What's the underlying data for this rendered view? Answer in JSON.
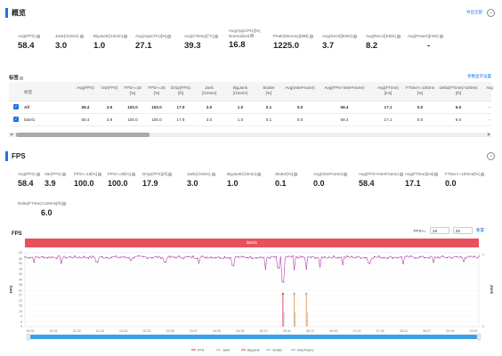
{
  "overview": {
    "title": "概览",
    "export_label": "导出全部",
    "collapse_glyph": "⌄",
    "metrics": [
      {
        "label": "Avg(FPS)",
        "value": "58.4"
      },
      {
        "label": "Jank(/10min)",
        "value": "3.0"
      },
      {
        "label": "BigJank(/10min)",
        "value": "1.0"
      },
      {
        "label": "Avg(AppCPU)[%]",
        "value": "27.1"
      },
      {
        "label": "Avg(CTemp)[°C]",
        "value": "39.3"
      },
      {
        "label": "Avg(AppCPU)[%]",
        "label2": "Normalized",
        "value": "16.8"
      },
      {
        "label": "Peak(Memory)[MB]",
        "value": "1225.0"
      },
      {
        "label": "Avg(Send)[KB/s]",
        "value": "3.7"
      },
      {
        "label": "Avg(Recv)[KB/s]",
        "value": "8.2"
      },
      {
        "label": "Avg(Power)[mW]",
        "value": "-"
      }
    ]
  },
  "tags": {
    "title": "标签",
    "settings_label": "参数显示设置",
    "columns": [
      {
        "l1": "标签",
        "l2": ""
      },
      {
        "l1": "Avg(FPS)",
        "l2": ""
      },
      {
        "l1": "Var(FPS)",
        "l2": ""
      },
      {
        "l1": "FPS>=18",
        "l2": "[%]"
      },
      {
        "l1": "FPS>=25",
        "l2": "[%]"
      },
      {
        "l1": "Drop(FPS)",
        "l2": "[/h]"
      },
      {
        "l1": "Jank",
        "l2": "(/10min)"
      },
      {
        "l1": "BigJank",
        "l2": "(/10min)"
      },
      {
        "l1": "Stutter",
        "l2": "[%]"
      },
      {
        "l1": "Avg(InterFrame)",
        "l2": ""
      },
      {
        "l1": "Avg(FPS+InterFrame)",
        "l2": ""
      },
      {
        "l1": "Avg(FTime)",
        "l2": "[ms]"
      },
      {
        "l1": "FTime>=100ms",
        "l2": "[%]"
      },
      {
        "l1": "Delta(FTime)>100ms",
        "l2": "[/h]"
      },
      {
        "l1": "Avg",
        "l2": ""
      }
    ],
    "rows": [
      {
        "name": "All",
        "bold": true,
        "values": [
          "58.4",
          "3.9",
          "100.0",
          "100.0",
          "17.9",
          "3.0",
          "1.0",
          "0.1",
          "0.0",
          "58.4",
          "17.1",
          "0.0",
          "6.0",
          "-"
        ]
      },
      {
        "name": "label1",
        "bold": false,
        "values": [
          "58.4",
          "3.9",
          "100.0",
          "100.0",
          "17.9",
          "3.0",
          "1.0",
          "0.1",
          "0.0",
          "58.4",
          "17.1",
          "0.0",
          "6.0",
          "-"
        ]
      }
    ],
    "check_glyph": "✓"
  },
  "fps_section": {
    "title": "FPS",
    "collapse_glyph": "⌄",
    "metrics": [
      {
        "label": "Avg(FPS)",
        "value": "58.4"
      },
      {
        "label": "Var(FPS)",
        "value": "3.9"
      },
      {
        "label": "FPS>=18[%]",
        "value": "100.0"
      },
      {
        "label": "FPS>=25[%]",
        "value": "100.0"
      },
      {
        "label": "Drop(FPS)[/h]",
        "value": "17.9"
      },
      {
        "label": "Jank(/10min)",
        "value": "3.0"
      },
      {
        "label": "BigJank(/10min)",
        "value": "1.0"
      },
      {
        "label": "Stutter[%]",
        "value": "0.1"
      },
      {
        "label": "Avg(InterFrame)",
        "value": "0.0"
      },
      {
        "label": "Avg(FPS+InterFrame)",
        "value": "58.4"
      },
      {
        "label": "Avg(FTime)[ms]",
        "value": "17.1"
      },
      {
        "label": "FTime>=100ms[%]",
        "value": "0.0"
      },
      {
        "label": "Delta(FTime)>100ms[/h]",
        "value": "6.0"
      }
    ]
  },
  "fps_chart": {
    "title": "FPS",
    "fps_gte_label": "FPS>=",
    "fps_input_1": "18",
    "fps_input_2": "25",
    "reset_label": "重置",
    "label_bar_text": "label1",
    "y_axis_title": "FPS",
    "y2_axis_title": "Jank"
  },
  "chart_data": {
    "type": "line",
    "y_ticks": [
      "63",
      "58",
      "54",
      "49",
      "45",
      "40",
      "36",
      "31",
      "27",
      "22",
      "18",
      "13",
      "9",
      "4",
      "0"
    ],
    "y2_ticks": [
      "1",
      "0"
    ],
    "x_ticks": [
      "00:00",
      "00:31",
      "01:02",
      "01:33",
      "02:04",
      "02:35",
      "03:06",
      "03:37",
      "04:08",
      "04:39",
      "05:10",
      "05:41",
      "06:12",
      "06:43",
      "07:14",
      "07:45",
      "08:16",
      "08:47",
      "09:18",
      "09:49"
    ],
    "ylim": [
      0,
      63
    ],
    "xlim_seconds": [
      0,
      600
    ],
    "fps_mean": 58.4,
    "fps_dips": [
      {
        "t": 12,
        "fps": 55
      },
      {
        "t": 48,
        "fps": 54
      },
      {
        "t": 95,
        "fps": 55
      },
      {
        "t": 140,
        "fps": 56
      },
      {
        "t": 185,
        "fps": 55
      },
      {
        "t": 230,
        "fps": 54
      },
      {
        "t": 275,
        "fps": 52
      },
      {
        "t": 318,
        "fps": 49
      },
      {
        "t": 335,
        "fps": 50
      },
      {
        "t": 341,
        "fps": 38
      },
      {
        "t": 356,
        "fps": 48
      },
      {
        "t": 372,
        "fps": 49
      },
      {
        "t": 390,
        "fps": 51
      },
      {
        "t": 420,
        "fps": 53
      },
      {
        "t": 455,
        "fps": 54
      },
      {
        "t": 500,
        "fps": 53
      },
      {
        "t": 540,
        "fps": 55
      },
      {
        "t": 580,
        "fps": 55
      }
    ],
    "jank_events": [
      {
        "t": 341,
        "value": 1,
        "big": true
      },
      {
        "t": 356,
        "value": 1,
        "big": false
      },
      {
        "t": 372,
        "value": 1,
        "big": false
      }
    ],
    "legend": [
      {
        "name": "FPS",
        "color": "#e8505b"
      },
      {
        "name": "Jank",
        "color": "#e8a060"
      },
      {
        "name": "BigJank",
        "color": "#e86a3a"
      },
      {
        "name": "Stutter",
        "color": "#c8a0d8"
      },
      {
        "name": "InterFrame",
        "color": "#7ab8e8"
      }
    ],
    "fps_color": "#b040b0"
  }
}
